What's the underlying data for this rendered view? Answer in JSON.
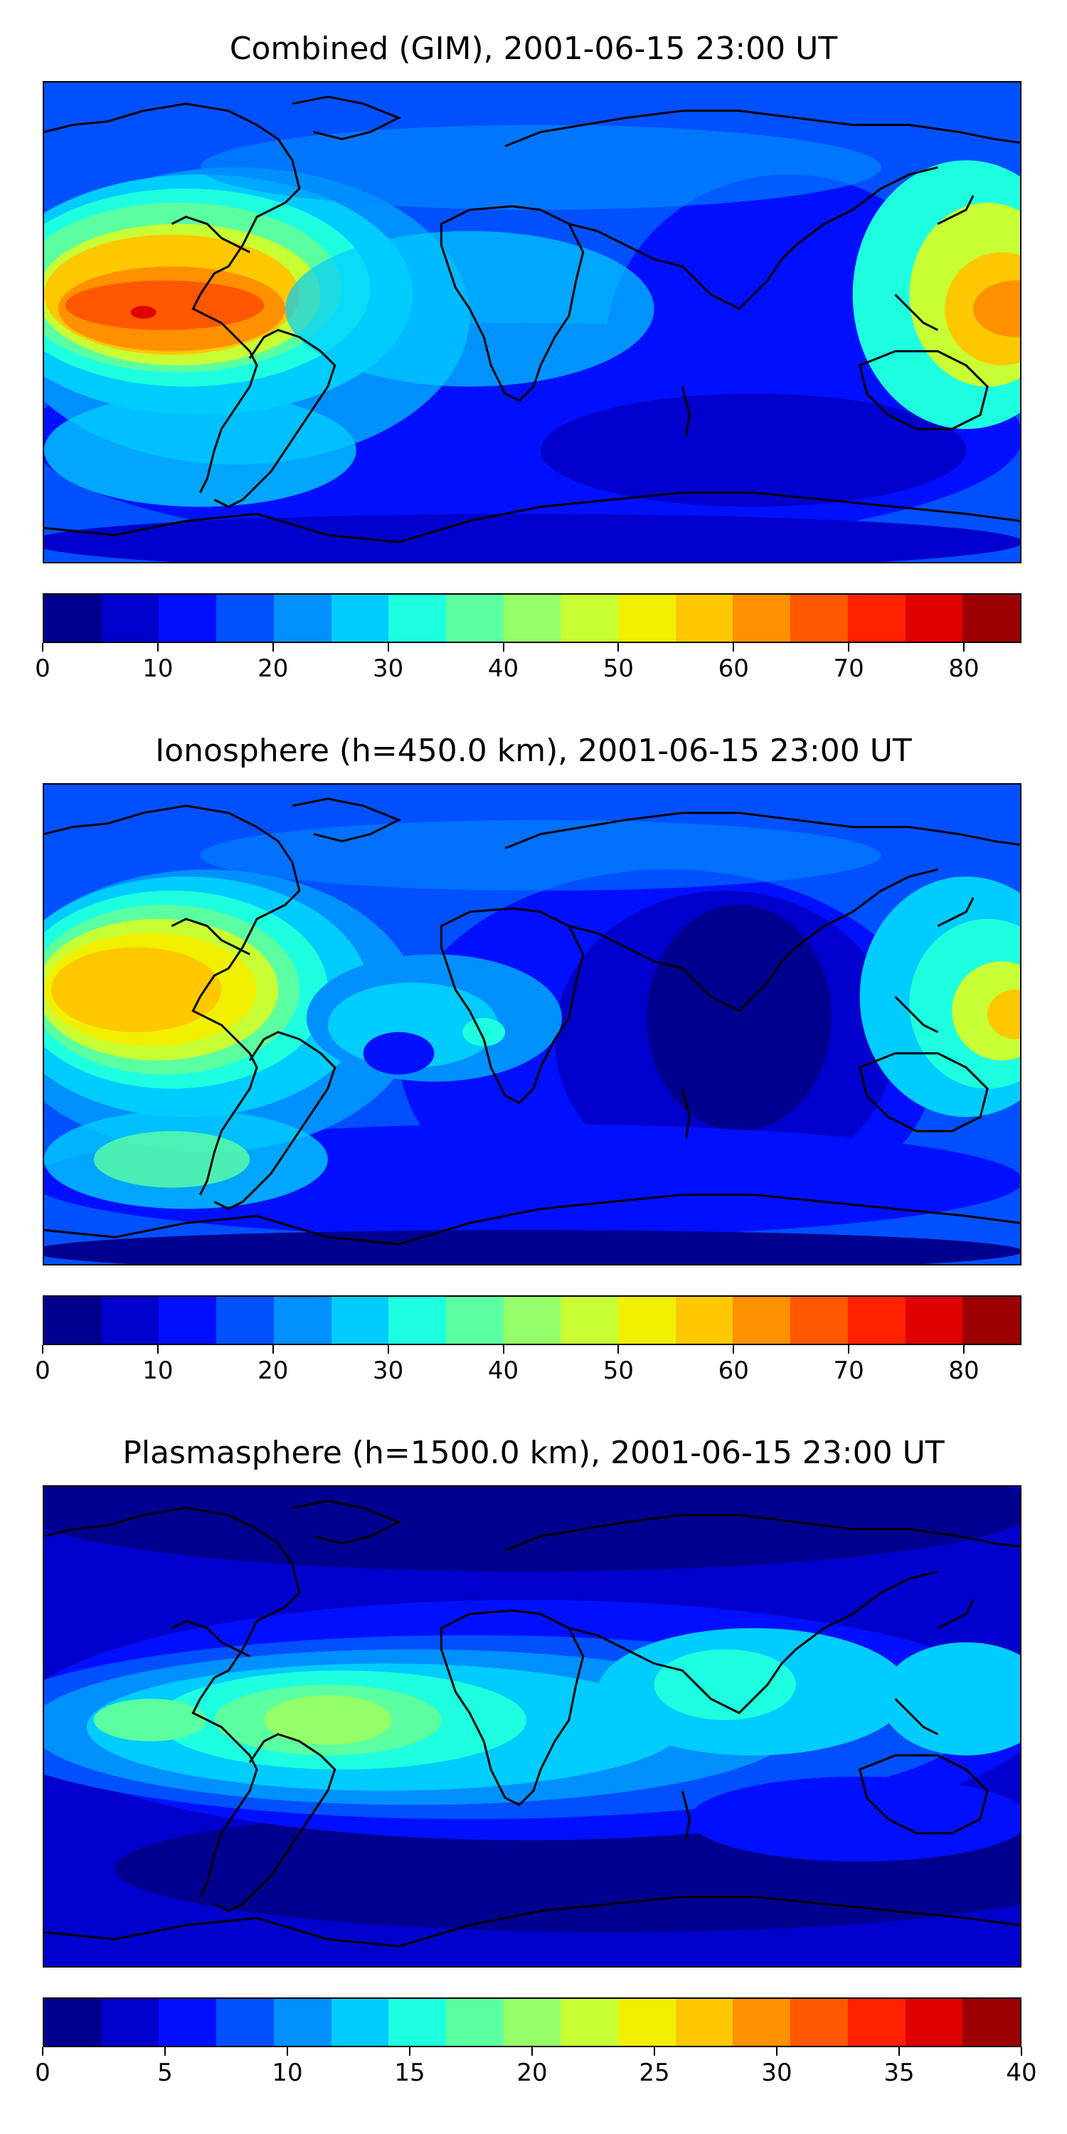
{
  "panels": [
    {
      "title": "Combined (GIM), 2001-06-15 23:00 UT",
      "colorbar": {
        "min": 0,
        "max": 85,
        "step": 5,
        "ticks": [
          "0",
          "10",
          "20",
          "30",
          "40",
          "50",
          "60",
          "70",
          "80"
        ],
        "tick_values": [
          0,
          10,
          20,
          30,
          40,
          50,
          60,
          70,
          80
        ]
      }
    },
    {
      "title": "Ionosphere  (h=450.0 km), 2001-06-15 23:00 UT",
      "colorbar": {
        "min": 0,
        "max": 85,
        "step": 5,
        "ticks": [
          "0",
          "10",
          "20",
          "30",
          "40",
          "50",
          "60",
          "70",
          "80"
        ],
        "tick_values": [
          0,
          10,
          20,
          30,
          40,
          50,
          60,
          70,
          80
        ]
      }
    },
    {
      "title": "Plasmasphere (h=1500.0 km), 2001-06-15 23:00 UT",
      "colorbar": {
        "min": 0,
        "max": 40,
        "step": 2.5,
        "ticks": [
          "0",
          "5",
          "10",
          "15",
          "20",
          "25",
          "30",
          "35",
          "40"
        ],
        "tick_values": [
          0,
          5,
          10,
          15,
          20,
          25,
          30,
          35,
          40
        ]
      }
    }
  ],
  "colormap": [
    "#00008f",
    "#0000cc",
    "#0010ff",
    "#0050ff",
    "#0090ff",
    "#00ccff",
    "#1effe0",
    "#5cffa0",
    "#94ff68",
    "#c8ff34",
    "#f0f000",
    "#ffc800",
    "#ff9000",
    "#ff5800",
    "#ff2000",
    "#e00000",
    "#9c0000"
  ],
  "coastline_color": "#000000"
}
